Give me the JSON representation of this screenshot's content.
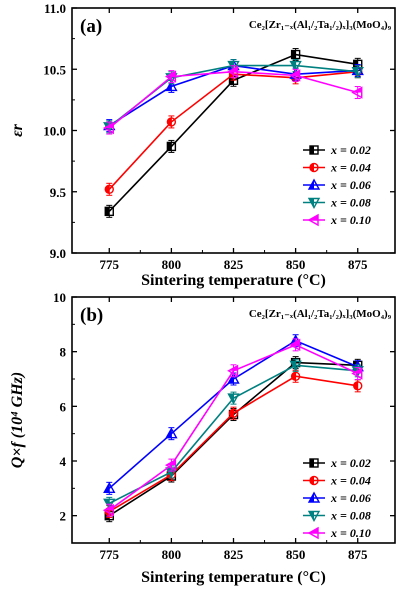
{
  "chart_data": [
    {
      "type": "line",
      "panel_label": "(a)",
      "formula": "Ce₂[Zr₁₋ₓ(Al₁/₂Ta₁/₂)ₓ]₃(MoO₄)₉",
      "ylabel": "εr",
      "xlabel": "Sintering temperature (°C)",
      "x": [
        775,
        800,
        825,
        850,
        875
      ],
      "xlim": [
        760,
        890
      ],
      "ylim": [
        9.0,
        11.0
      ],
      "xticks": [
        "775",
        "800",
        "825",
        "850",
        "875"
      ],
      "yticks": [
        "9.0",
        "9.5",
        "10.0",
        "10.5",
        "11.0"
      ],
      "legend_position": "bottom-right",
      "series": [
        {
          "name": "x = 0.02",
          "color": "#000000",
          "marker": "square",
          "values": [
            9.34,
            9.87,
            10.41,
            10.62,
            10.54
          ]
        },
        {
          "name": "x = 0.04",
          "color": "#ff0000",
          "marker": "circle",
          "values": [
            9.52,
            10.07,
            10.46,
            10.43,
            10.48
          ]
        },
        {
          "name": "x = 0.06",
          "color": "#0000ff",
          "marker": "triangle-up",
          "values": [
            10.04,
            10.36,
            10.53,
            10.46,
            10.49
          ]
        },
        {
          "name": "x = 0.08",
          "color": "#008080",
          "marker": "triangle-down",
          "values": [
            10.03,
            10.43,
            10.53,
            10.53,
            10.48
          ]
        },
        {
          "name": "x = 0.10",
          "color": "#ff00ff",
          "marker": "triangle-left",
          "values": [
            10.02,
            10.44,
            10.48,
            10.45,
            10.31
          ]
        }
      ]
    },
    {
      "type": "line",
      "panel_label": "(b)",
      "formula": "Ce₂[Zr₁₋ₓ(Al₁/₂Ta₁/₂)ₓ]₃(MoO₄)₉",
      "ylabel": "Q×f (10⁴ GHz)",
      "xlabel": "Sintering temperature (°C)",
      "x": [
        775,
        800,
        825,
        850,
        875
      ],
      "xlim": [
        760,
        890
      ],
      "ylim": [
        1,
        10
      ],
      "xticks": [
        "775",
        "800",
        "825",
        "850",
        "875"
      ],
      "yticks": [
        "2",
        "4",
        "6",
        "8",
        "10"
      ],
      "legend_position": "bottom-right",
      "series": [
        {
          "name": "x = 0.02",
          "color": "#000000",
          "marker": "square",
          "values": [
            2.0,
            3.45,
            5.7,
            7.6,
            7.5
          ]
        },
        {
          "name": "x = 0.04",
          "color": "#ff0000",
          "marker": "circle",
          "values": [
            2.15,
            3.5,
            5.75,
            7.1,
            6.75
          ]
        },
        {
          "name": "x = 0.06",
          "color": "#0000ff",
          "marker": "triangle-up",
          "values": [
            3.0,
            5.0,
            7.0,
            8.4,
            7.45
          ]
        },
        {
          "name": "x = 0.08",
          "color": "#008080",
          "marker": "triangle-down",
          "values": [
            2.45,
            3.6,
            6.3,
            7.5,
            7.3
          ]
        },
        {
          "name": "x = 0.10",
          "color": "#ff00ff",
          "marker": "triangle-left",
          "values": [
            2.2,
            3.85,
            7.3,
            8.25,
            7.2
          ]
        }
      ]
    }
  ]
}
